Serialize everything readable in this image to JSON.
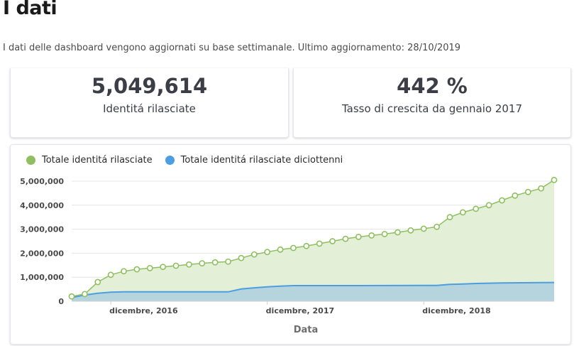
{
  "page": {
    "title": "I dati",
    "subtitle": "I dati delle dashboard vengono aggiornati su base settimanale. Ultimo aggiornamento: 28/10/2019"
  },
  "kpis": [
    {
      "value": "5,049,614",
      "label": "Identitá rilasciate"
    },
    {
      "value": "442 %",
      "label": "Tasso di crescita da gennaio 2017"
    }
  ],
  "colors": {
    "green_series": "#8fbf62",
    "green_fill": "#e3efd6",
    "blue_series": "#4d9de0",
    "blue_fill": "#b5d4de",
    "axis_text": "#4a4a4a"
  },
  "chart_data": {
    "type": "area",
    "xlabel": "Data",
    "ylabel": "",
    "x_ticks": [
      "dicembre, 2016",
      "dicembre, 2017",
      "dicembre, 2018"
    ],
    "y_ticks": [
      "0",
      "1,000,000",
      "2,000,000",
      "3,000,000",
      "4,000,000",
      "5,000,000"
    ],
    "ylim": [
      0,
      5000000
    ],
    "xlim": [
      "2016-09",
      "2019-10"
    ],
    "grid": true,
    "legend_position": "top-left",
    "series": [
      {
        "name": "Totale identitá rilasciate",
        "x": [
          "2016-09",
          "2016-10",
          "2016-11",
          "2016-12",
          "2017-01",
          "2017-02",
          "2017-03",
          "2017-04",
          "2017-05",
          "2017-06",
          "2017-07",
          "2017-08",
          "2017-09",
          "2017-10",
          "2017-11",
          "2017-12",
          "2018-01",
          "2018-02",
          "2018-03",
          "2018-04",
          "2018-05",
          "2018-06",
          "2018-07",
          "2018-08",
          "2018-09",
          "2018-10",
          "2018-11",
          "2018-12",
          "2019-01",
          "2019-02",
          "2019-03",
          "2019-04",
          "2019-05",
          "2019-06",
          "2019-07",
          "2019-08",
          "2019-09",
          "2019-10"
        ],
        "values": [
          200000,
          300000,
          800000,
          1100000,
          1250000,
          1330000,
          1380000,
          1430000,
          1480000,
          1530000,
          1580000,
          1620000,
          1650000,
          1800000,
          1950000,
          2050000,
          2150000,
          2220000,
          2300000,
          2400000,
          2500000,
          2600000,
          2680000,
          2740000,
          2800000,
          2870000,
          2950000,
          3020000,
          3100000,
          3500000,
          3700000,
          3850000,
          4000000,
          4200000,
          4400000,
          4550000,
          4700000,
          5049614
        ]
      },
      {
        "name": "Totale identitá rilasciate diciottenni",
        "x": [
          "2016-09",
          "2016-10",
          "2016-11",
          "2016-12",
          "2017-01",
          "2017-05",
          "2017-09",
          "2017-10",
          "2017-11",
          "2017-12",
          "2018-01",
          "2018-02",
          "2018-06",
          "2018-12",
          "2019-01",
          "2019-02",
          "2019-03",
          "2019-04",
          "2019-06",
          "2019-10"
        ],
        "values": [
          150000,
          260000,
          330000,
          380000,
          390000,
          390000,
          390000,
          510000,
          560000,
          600000,
          630000,
          650000,
          650000,
          660000,
          660000,
          700000,
          720000,
          740000,
          760000,
          780000
        ]
      }
    ]
  }
}
